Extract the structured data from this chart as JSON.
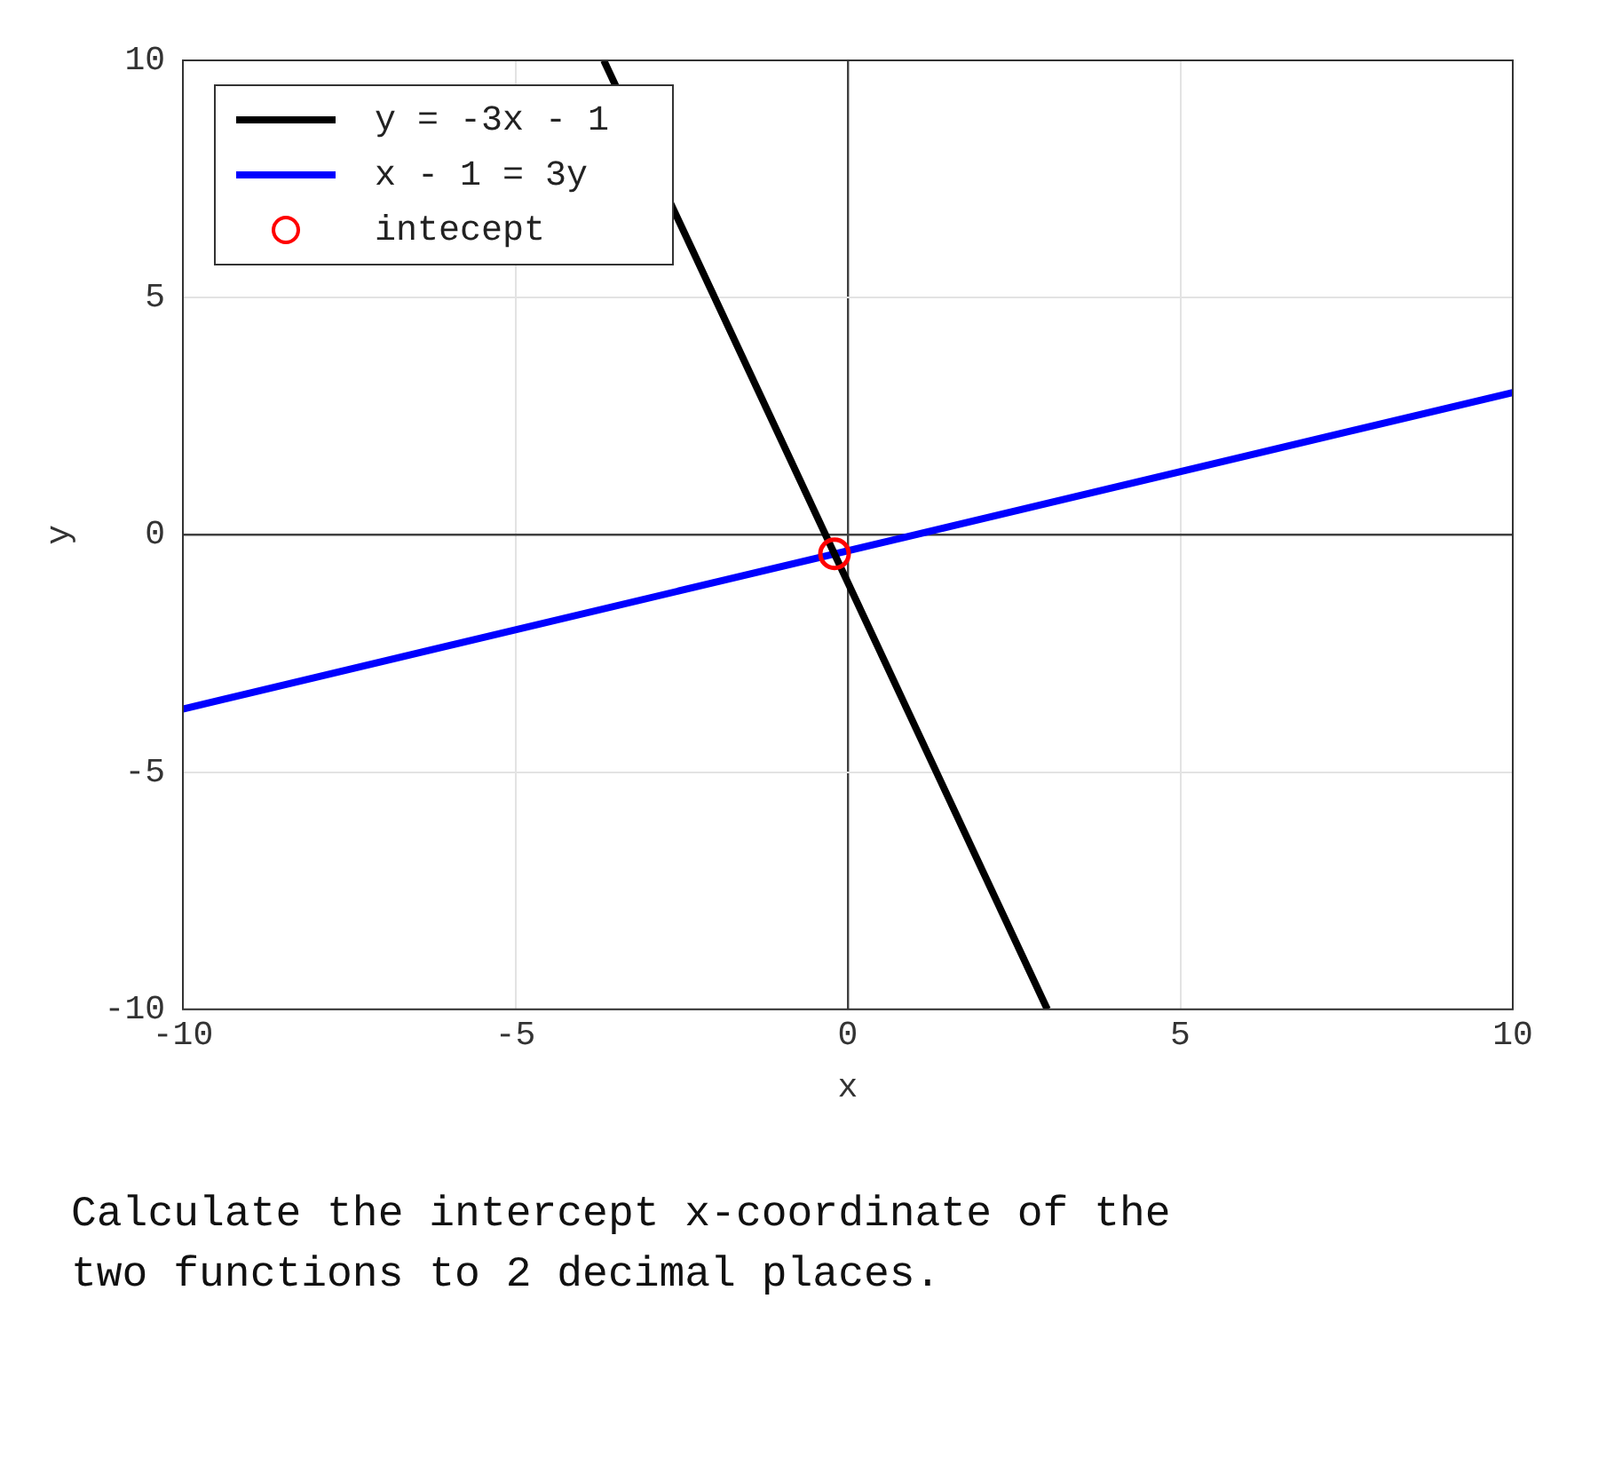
{
  "chart_data": {
    "type": "line",
    "xlabel": "x",
    "ylabel": "y",
    "xlim": [
      -10,
      10
    ],
    "ylim": [
      -10,
      10
    ],
    "xticks": [
      -10,
      -5,
      0,
      5,
      10
    ],
    "yticks": [
      -10,
      -5,
      0,
      5,
      10
    ],
    "grid": true,
    "legend": "top left",
    "annotations": [
      "Calculate the intercept x-coordinate of the two functions to 2 decimal places."
    ],
    "series": [
      {
        "name": "y = -3x - 1",
        "type": "line",
        "marker": "none",
        "color": "#000000",
        "x": [
          -3.67,
          3
        ],
        "values": [
          10,
          -10
        ]
      },
      {
        "name": "x - 1 = 3y",
        "type": "line",
        "marker": "none",
        "color": "#0000ff",
        "x": [
          -10,
          10
        ],
        "values": [
          -3.67,
          3
        ]
      },
      {
        "name": "intecept",
        "type": "scatter",
        "marker": "circle",
        "color": "#ff0000",
        "x": [
          -0.2
        ],
        "values": [
          -0.4
        ]
      }
    ]
  }
}
